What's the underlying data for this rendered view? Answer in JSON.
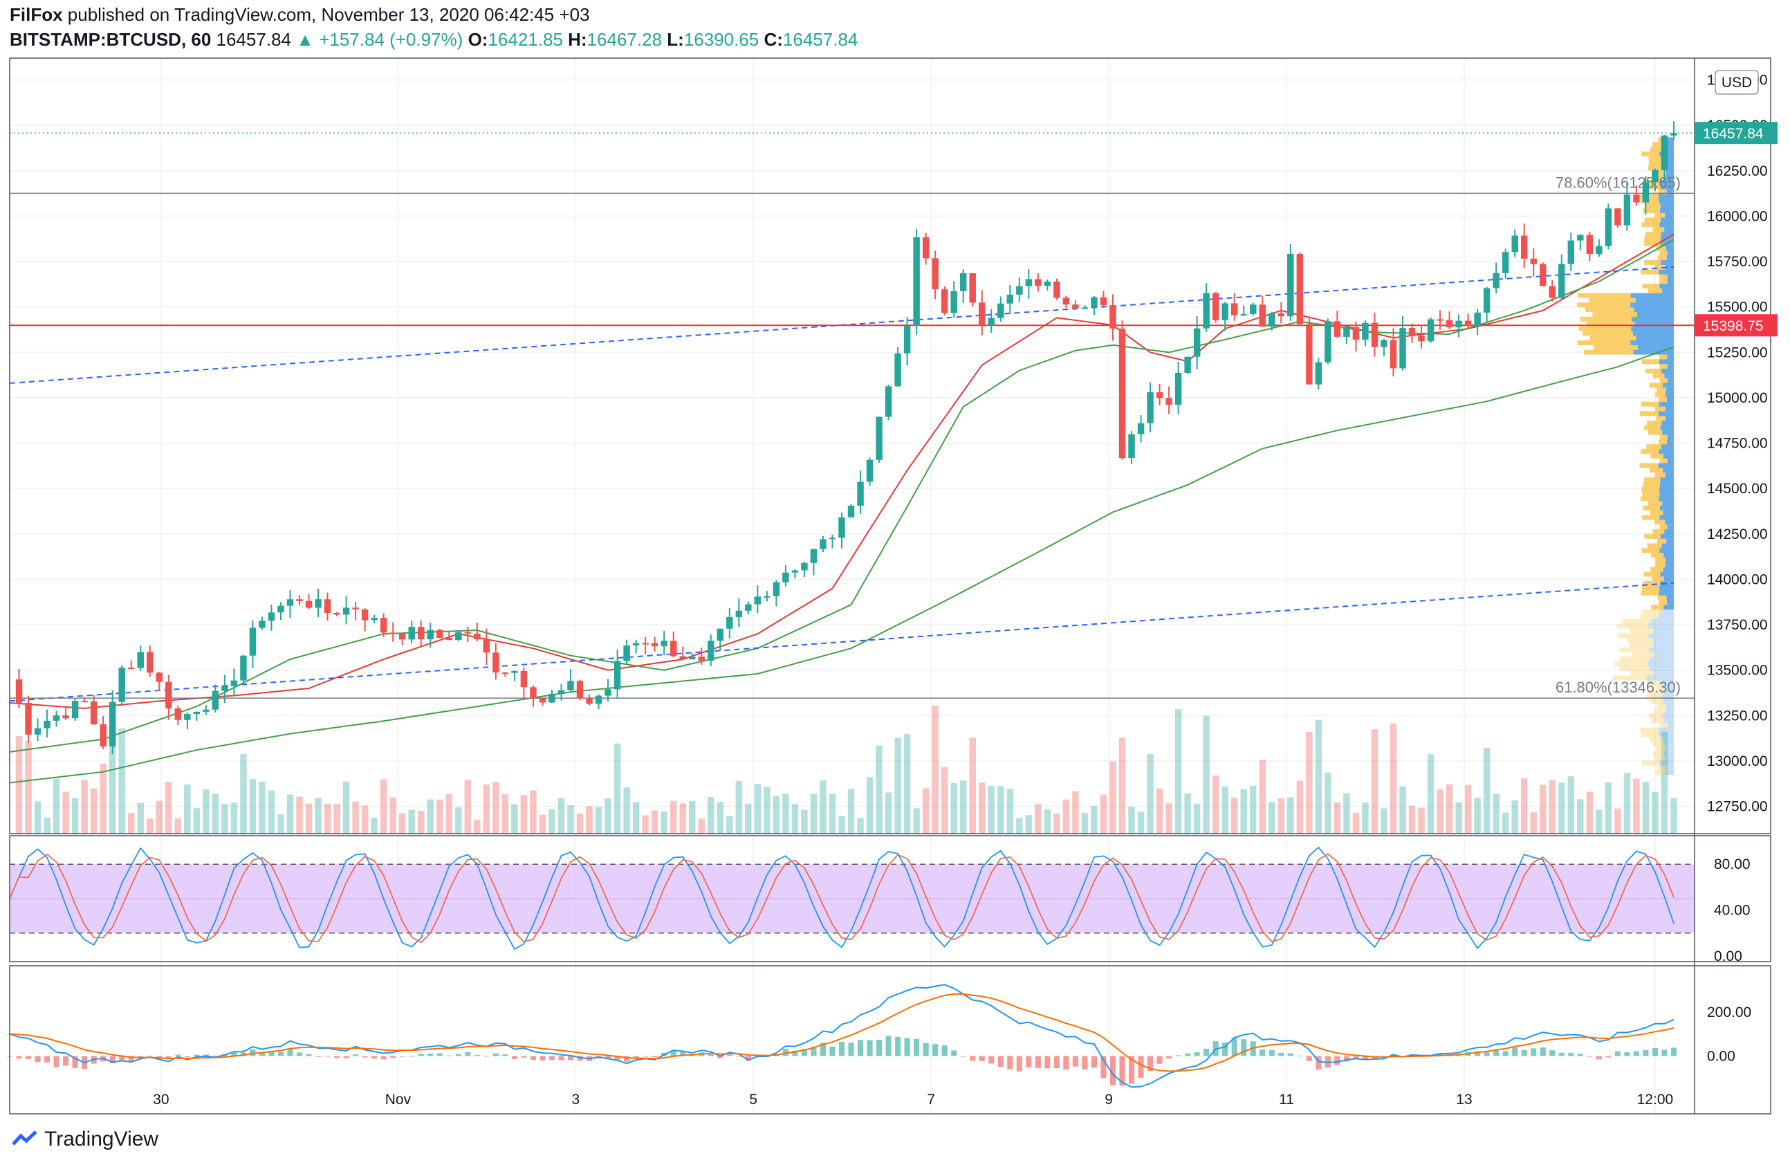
{
  "header": {
    "author": "FilFox",
    "published_text": "published on TradingView.com, November 13, 2020 06:42:45 +03",
    "symbol": "BITSTAMP:BTCUSD, 60",
    "last": "16457.84",
    "change": "▲ +157.84 (+0.97%)",
    "open_label": "O:",
    "open": "16421.85",
    "high_label": "H:",
    "high": "16467.28",
    "low_label": "L:",
    "low": "16390.65",
    "close_label": "C:",
    "close": "16457.84"
  },
  "footer": {
    "brand": "TradingView"
  },
  "colors": {
    "up": "#26a69a",
    "down": "#ef5350",
    "ma_red": "#e53935",
    "ma_green": "#43a047",
    "trend": "#2962ff",
    "stoch_band": "#e1c7fb",
    "stoch_k": "#2196f3",
    "stoch_d": "#ef6c4f",
    "macd": "#2196f3",
    "signal": "#ff6d00",
    "vp_up": "#f9c74f",
    "vp_blue": "#4a9be4"
  },
  "chart_data": {
    "type": "candlestick",
    "currency_label": "USD",
    "price_axis": {
      "min": 12600,
      "max": 16870,
      "ticks": [
        "12750.00",
        "13000.00",
        "13250.00",
        "13500.00",
        "13750.00",
        "14000.00",
        "14250.00",
        "14500.00",
        "14750.00",
        "15000.00",
        "15250.00",
        "15500.00",
        "15750.00",
        "16000.00",
        "16250.00",
        "16500.00",
        "16750.00"
      ]
    },
    "time_axis": {
      "ticks": [
        "30",
        "Nov",
        "3",
        "5",
        "7",
        "9",
        "11",
        "13",
        "12:00"
      ]
    },
    "last_price_tag": "16457.84",
    "horizontal_line_tag": "15398.75",
    "fib_levels": [
      {
        "label": "78.60%(16125.65)",
        "price": 16125.65
      },
      {
        "label": "61.80%(13346.30)",
        "price": 13346.3
      }
    ],
    "price_path": [
      [
        0,
        13450
      ],
      [
        2,
        13180
      ],
      [
        5,
        13250
      ],
      [
        8,
        13320
      ],
      [
        10,
        13100
      ],
      [
        12,
        13500
      ],
      [
        14,
        13600
      ],
      [
        16,
        13420
      ],
      [
        18,
        13220
      ],
      [
        20,
        13300
      ],
      [
        23,
        13370
      ],
      [
        27,
        13800
      ],
      [
        31,
        13900
      ],
      [
        34,
        13820
      ],
      [
        37,
        13850
      ],
      [
        40,
        13720
      ],
      [
        43,
        13700
      ],
      [
        46,
        13680
      ],
      [
        49,
        13710
      ],
      [
        52,
        13520
      ],
      [
        54,
        13500
      ],
      [
        57,
        13330
      ],
      [
        60,
        13400
      ],
      [
        62,
        13320
      ],
      [
        64,
        13400
      ],
      [
        66,
        13640
      ],
      [
        68,
        13670
      ],
      [
        70,
        13640
      ],
      [
        72,
        13580
      ],
      [
        74,
        13520
      ],
      [
        75,
        13620
      ],
      [
        77,
        13760
      ],
      [
        79,
        13850
      ],
      [
        81,
        13950
      ],
      [
        83,
        14050
      ],
      [
        85,
        14100
      ],
      [
        87,
        14200
      ],
      [
        89,
        14300
      ],
      [
        90,
        14450
      ],
      [
        92,
        14650
      ],
      [
        93,
        14900
      ],
      [
        94,
        15100
      ],
      [
        95,
        15200
      ],
      [
        96,
        15400
      ],
      [
        96.5,
        15700
      ],
      [
        97,
        15850
      ],
      [
        98,
        15760
      ],
      [
        99,
        15600
      ],
      [
        100,
        15500
      ],
      [
        101,
        15560
      ],
      [
        102,
        15650
      ],
      [
        104,
        15440
      ],
      [
        106,
        15500
      ],
      [
        108,
        15600
      ],
      [
        110,
        15640
      ],
      [
        112,
        15580
      ],
      [
        114,
        15530
      ],
      [
        116,
        15550
      ],
      [
        117,
        15480
      ],
      [
        118,
        15350
      ],
      [
        118.5,
        15000
      ],
      [
        119,
        14700
      ],
      [
        120,
        14800
      ],
      [
        121,
        14900
      ],
      [
        122,
        15050
      ],
      [
        123,
        15000
      ],
      [
        124,
        15000
      ],
      [
        125,
        15150
      ],
      [
        126,
        15250
      ],
      [
        127,
        15400
      ],
      [
        128,
        15550
      ],
      [
        129,
        15460
      ],
      [
        130,
        15550
      ],
      [
        131,
        15500
      ],
      [
        132,
        15450
      ],
      [
        133,
        15550
      ],
      [
        134,
        15400
      ],
      [
        135,
        15500
      ],
      [
        136,
        15450
      ],
      [
        137,
        15800
      ],
      [
        138,
        15450
      ],
      [
        138.5,
        15200
      ],
      [
        139,
        15050
      ],
      [
        140,
        15200
      ],
      [
        141,
        15400
      ],
      [
        142,
        15350
      ],
      [
        143,
        15350
      ],
      [
        144,
        15300
      ],
      [
        145,
        15400
      ],
      [
        146,
        15300
      ],
      [
        147,
        15330
      ],
      [
        148,
        15200
      ],
      [
        149,
        15350
      ],
      [
        150,
        15380
      ],
      [
        151,
        15350
      ],
      [
        152,
        15460
      ],
      [
        154,
        15430
      ],
      [
        156,
        15400
      ],
      [
        157,
        15480
      ],
      [
        158,
        15600
      ],
      [
        159,
        15650
      ],
      [
        160,
        15800
      ],
      [
        161,
        15900
      ],
      [
        162,
        15800
      ],
      [
        163,
        15700
      ],
      [
        164,
        15600
      ],
      [
        165,
        15550
      ],
      [
        166,
        15700
      ],
      [
        167,
        15850
      ],
      [
        168,
        15900
      ],
      [
        169,
        15750
      ],
      [
        170,
        15800
      ],
      [
        171,
        16050
      ],
      [
        172,
        15950
      ],
      [
        173,
        16100
      ],
      [
        174,
        16050
      ],
      [
        175,
        16150
      ],
      [
        176,
        16250
      ],
      [
        177,
        16400
      ],
      [
        178,
        16460
      ]
    ],
    "ma_red": [
      [
        0,
        13320
      ],
      [
        8,
        13290
      ],
      [
        16,
        13330
      ],
      [
        24,
        13360
      ],
      [
        32,
        13400
      ],
      [
        40,
        13560
      ],
      [
        48,
        13700
      ],
      [
        56,
        13620
      ],
      [
        64,
        13500
      ],
      [
        72,
        13560
      ],
      [
        80,
        13700
      ],
      [
        88,
        13950
      ],
      [
        96,
        14600
      ],
      [
        104,
        15180
      ],
      [
        112,
        15440
      ],
      [
        118,
        15400
      ],
      [
        122,
        15250
      ],
      [
        126,
        15200
      ],
      [
        130,
        15380
      ],
      [
        136,
        15480
      ],
      [
        140,
        15430
      ],
      [
        148,
        15330
      ],
      [
        156,
        15380
      ],
      [
        164,
        15480
      ],
      [
        172,
        15720
      ],
      [
        178,
        15900
      ]
    ],
    "ma_green": [
      [
        0,
        13050
      ],
      [
        10,
        13120
      ],
      [
        20,
        13300
      ],
      [
        30,
        13560
      ],
      [
        40,
        13700
      ],
      [
        50,
        13720
      ],
      [
        60,
        13580
      ],
      [
        70,
        13500
      ],
      [
        80,
        13620
      ],
      [
        90,
        13860
      ],
      [
        96,
        14400
      ],
      [
        102,
        14950
      ],
      [
        108,
        15150
      ],
      [
        114,
        15260
      ],
      [
        118,
        15290
      ],
      [
        124,
        15250
      ],
      [
        130,
        15320
      ],
      [
        138,
        15420
      ],
      [
        146,
        15360
      ],
      [
        154,
        15350
      ],
      [
        162,
        15480
      ],
      [
        170,
        15640
      ],
      [
        178,
        15870
      ]
    ],
    "ma_long": [
      [
        0,
        12880
      ],
      [
        10,
        12940
      ],
      [
        20,
        13060
      ],
      [
        30,
        13150
      ],
      [
        40,
        13220
      ],
      [
        50,
        13300
      ],
      [
        60,
        13380
      ],
      [
        70,
        13430
      ],
      [
        80,
        13480
      ],
      [
        90,
        13620
      ],
      [
        100,
        13880
      ],
      [
        110,
        14150
      ],
      [
        118,
        14370
      ],
      [
        126,
        14520
      ],
      [
        134,
        14720
      ],
      [
        142,
        14820
      ],
      [
        150,
        14900
      ],
      [
        158,
        14980
      ],
      [
        166,
        15090
      ],
      [
        172,
        15170
      ],
      [
        178,
        15280
      ]
    ],
    "volume_note": "bars at bottom of price pane",
    "stochastic": {
      "ticks": [
        "80.00",
        "40.00",
        "0.00"
      ],
      "band": [
        20,
        80
      ],
      "range": [
        0,
        100
      ]
    },
    "macd": {
      "ticks": [
        "200.00",
        "0.00"
      ],
      "range": [
        -200,
        380
      ]
    }
  }
}
